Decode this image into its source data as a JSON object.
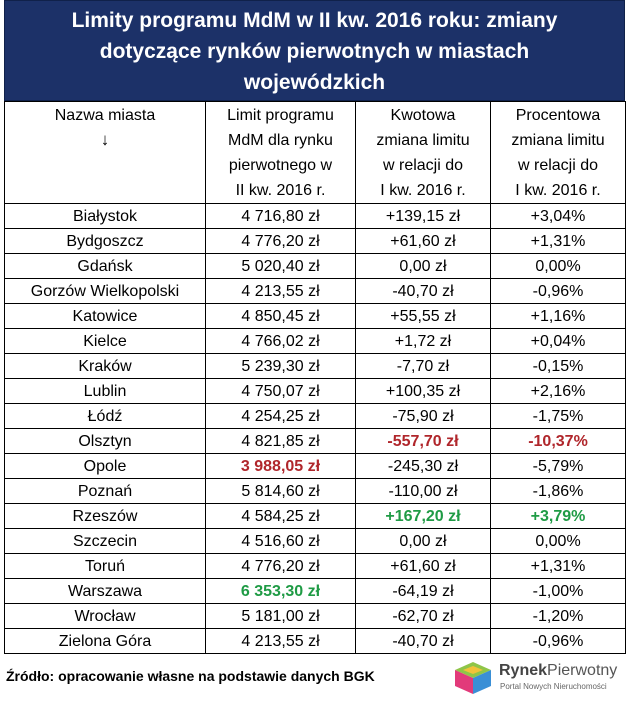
{
  "title_lines": [
    "Limity programu MdM w II kw. 2016 roku: zmiany",
    "dotyczące rynków pierwotnych w miastach",
    "wojewódzkich"
  ],
  "header": {
    "city": [
      "Nazwa miasta",
      "↓"
    ],
    "limit": [
      "Limit programu",
      "MdM dla rynku",
      "pierwotnego w",
      "II kw. 2016 r."
    ],
    "amount_change": [
      "Kwotowa",
      "zmiana limitu",
      "w relacji do",
      "I kw. 2016 r."
    ],
    "percent_change": [
      "Procentowa",
      "zmiana limitu",
      "w relacji do",
      "I kw. 2016 r."
    ]
  },
  "rows": [
    {
      "city": "Białystok",
      "limit": "4 716,80 zł",
      "amount": "+139,15 zł",
      "percent": "+3,04%"
    },
    {
      "city": "Bydgoszcz",
      "limit": "4 776,20 zł",
      "amount": "+61,60 zł",
      "percent": "+1,31%"
    },
    {
      "city": "Gdańsk",
      "limit": "5 020,40 zł",
      "amount": "0,00 zł",
      "percent": "0,00%"
    },
    {
      "city": "Gorzów Wielkopolski",
      "limit": "4 213,55 zł",
      "amount": "-40,70 zł",
      "percent": "-0,96%"
    },
    {
      "city": "Katowice",
      "limit": "4 850,45 zł",
      "amount": "+55,55 zł",
      "percent": "+1,16%"
    },
    {
      "city": "Kielce",
      "limit": "4 766,02 zł",
      "amount": "+1,72 zł",
      "percent": "+0,04%"
    },
    {
      "city": "Kraków",
      "limit": "5 239,30 zł",
      "amount": "-7,70 zł",
      "percent": "-0,15%"
    },
    {
      "city": "Lublin",
      "limit": "4 750,07 zł",
      "amount": "+100,35 zł",
      "percent": "+2,16%"
    },
    {
      "city": "Łódź",
      "limit": "4 254,25 zł",
      "amount": "-75,90 zł",
      "percent": "-1,75%"
    },
    {
      "city": "Olsztyn",
      "limit": "4 821,85 zł",
      "amount": "-557,70 zł",
      "percent": "-10,37%",
      "amount_style": "red",
      "percent_style": "red"
    },
    {
      "city": "Opole",
      "limit": "3 988,05 zł",
      "amount": "-245,30 zł",
      "percent": "-5,79%",
      "limit_style": "red"
    },
    {
      "city": "Poznań",
      "limit": "5 814,60 zł",
      "amount": "-110,00 zł",
      "percent": "-1,86%"
    },
    {
      "city": "Rzeszów",
      "limit": "4 584,25 zł",
      "amount": "+167,20 zł",
      "percent": "+3,79%",
      "amount_style": "green",
      "percent_style": "green"
    },
    {
      "city": "Szczecin",
      "limit": "4 516,60 zł",
      "amount": "0,00 zł",
      "percent": "0,00%"
    },
    {
      "city": "Toruń",
      "limit": "4 776,20 zł",
      "amount": "+61,60 zł",
      "percent": "+1,31%"
    },
    {
      "city": "Warszawa",
      "limit": "6 353,30 zł",
      "amount": "-64,19 zł",
      "percent": "-1,00%",
      "limit_style": "green"
    },
    {
      "city": "Wrocław",
      "limit": "5 181,00 zł",
      "amount": "-62,70 zł",
      "percent": "-1,20%"
    },
    {
      "city": "Zielona Góra",
      "limit": "4 213,55 zł",
      "amount": "-40,70 zł",
      "percent": "-0,96%"
    }
  ],
  "footer": {
    "source": "Źródło: opracowanie własne na podstawie danych BGK",
    "logo_bold": "Rynek",
    "logo_light": "Pierwotny",
    "logo_subtitle": "Portal Nowych Nieruchomości"
  },
  "colors": {
    "title_bg": "#1c3168",
    "highlight_red": "#b0262b",
    "highlight_green": "#1f9b45"
  }
}
